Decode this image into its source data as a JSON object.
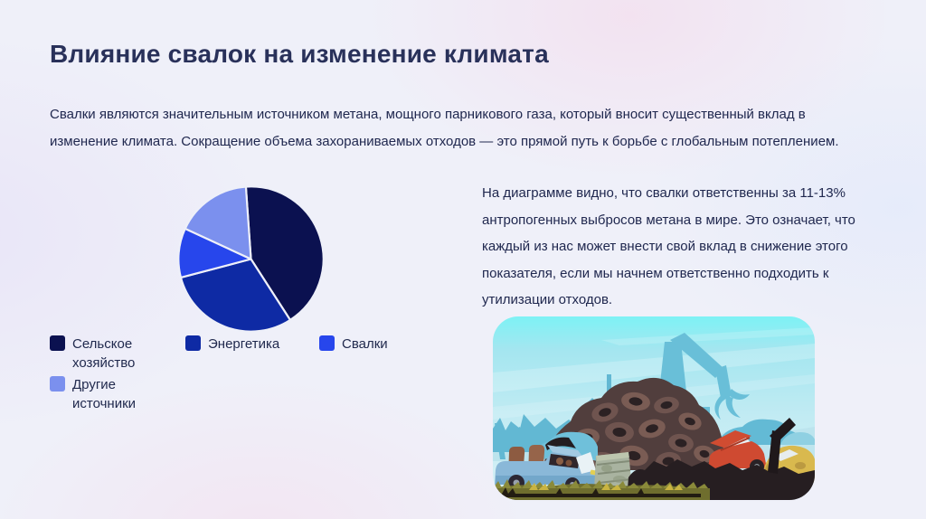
{
  "slide": {
    "title": "Влияние свалок на изменение климата",
    "intro": "Свалки являются значительным источником метана, мощного парникового газа, который вносит существенный вклад в изменение климата. Сокращение объема захораниваемых отходов — это прямой путь к борьбе с глобальным потеплением.",
    "side_text": "На диаграмме видно, что свалки ответственны за 11-13% антропогенных выбросов метана в мире. Это означает, что каждый из нас может внести свой вклад в снижение этого показателя, если мы начнем ответственно подходить к утилизации отходов."
  },
  "chart_data": {
    "type": "pie",
    "title": "",
    "categories": [
      "Сельское хозяйство",
      "Энергетика",
      "Свалки",
      "Другие источники"
    ],
    "values": [
      42,
      30,
      11,
      17
    ],
    "unit": "%",
    "colors": [
      "#0b1150",
      "#0e2aa4",
      "#2746ec",
      "#7b90ee"
    ],
    "start_angle_deg": -4,
    "direction": "clockwise",
    "legend_position": "bottom-left"
  },
  "illustration": {
    "name": "junkyard-scene"
  }
}
